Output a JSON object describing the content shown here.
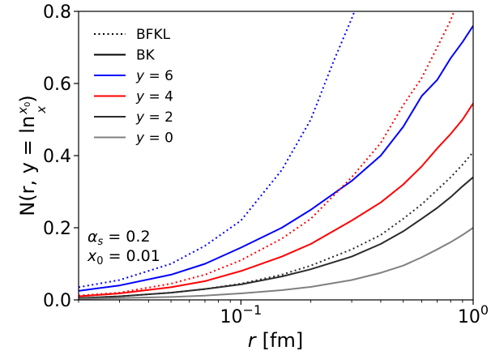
{
  "chart_data": {
    "type": "line",
    "xscale": "log",
    "xlim": [
      0.02,
      1.0
    ],
    "ylim": [
      0.0,
      0.8
    ],
    "xlabel": {
      "main": "r",
      "unit": "[fm]"
    },
    "ylabel": {
      "lhs": "N(r, y = ln",
      "num": "x",
      "num_sub": "0",
      "den": "x",
      "rhs": ")"
    },
    "xticks": [
      {
        "value": 0.1,
        "base": "10",
        "exp": "−1"
      },
      {
        "value": 1.0,
        "base": "10",
        "exp": "0"
      }
    ],
    "yticks": [
      {
        "value": 0.0,
        "label": "0.0"
      },
      {
        "value": 0.2,
        "label": "0.2"
      },
      {
        "value": 0.4,
        "label": "0.4"
      },
      {
        "value": 0.6,
        "label": "0.6"
      },
      {
        "value": 0.8,
        "label": "0.8"
      }
    ],
    "legend": {
      "position": "top-left",
      "entries": [
        {
          "label": "BFKL",
          "style": "dotted",
          "color": "#000000"
        },
        {
          "label": "BK",
          "style": "solid",
          "color": "#000000"
        },
        {
          "label_var": "y",
          "label_rest": " = 6",
          "style": "solid",
          "color": "#0000ff"
        },
        {
          "label_var": "y",
          "label_rest": " = 4",
          "style": "solid",
          "color": "#ff0000"
        },
        {
          "label_var": "y",
          "label_rest": " = 2",
          "style": "solid",
          "color": "#2b2b2b"
        },
        {
          "label_var": "y",
          "label_rest": " = 0",
          "style": "solid",
          "color": "#808080"
        }
      ]
    },
    "annotations": [
      {
        "var": "α",
        "sub": "s",
        "rest": " = 0.2"
      },
      {
        "var": "x",
        "sub": "0",
        "rest": " = 0.01"
      }
    ],
    "series": [
      {
        "y": 6,
        "model": "BFKL",
        "style": "dotted",
        "color": "#0000ff",
        "x": [
          0.02,
          0.03,
          0.05,
          0.07,
          0.1,
          0.15,
          0.2,
          0.25,
          0.3,
          0.33
        ],
        "values": [
          0.035,
          0.055,
          0.1,
          0.15,
          0.22,
          0.36,
          0.5,
          0.66,
          0.78,
          0.85
        ]
      },
      {
        "y": 6,
        "model": "BK",
        "style": "solid",
        "color": "#0000ff",
        "x": [
          0.02,
          0.03,
          0.05,
          0.07,
          0.1,
          0.15,
          0.2,
          0.3,
          0.4,
          0.5,
          0.6,
          0.7,
          0.8,
          0.9,
          1.0
        ],
        "values": [
          0.025,
          0.04,
          0.07,
          0.1,
          0.145,
          0.2,
          0.25,
          0.33,
          0.4,
          0.48,
          0.565,
          0.61,
          0.67,
          0.715,
          0.76
        ]
      },
      {
        "y": 4,
        "model": "BFKL",
        "style": "dotted",
        "color": "#ff0000",
        "x": [
          0.02,
          0.03,
          0.05,
          0.07,
          0.1,
          0.15,
          0.2,
          0.3,
          0.4,
          0.5,
          0.6,
          0.7,
          0.8,
          0.85
        ],
        "values": [
          0.012,
          0.02,
          0.045,
          0.07,
          0.11,
          0.17,
          0.225,
          0.34,
          0.435,
          0.54,
          0.615,
          0.7,
          0.775,
          0.82
        ]
      },
      {
        "y": 4,
        "model": "BK",
        "style": "solid",
        "color": "#ff0000",
        "x": [
          0.02,
          0.03,
          0.05,
          0.07,
          0.1,
          0.15,
          0.2,
          0.3,
          0.4,
          0.5,
          0.6,
          0.7,
          0.8,
          0.9,
          1.0
        ],
        "values": [
          0.01,
          0.018,
          0.035,
          0.052,
          0.08,
          0.12,
          0.155,
          0.22,
          0.27,
          0.32,
          0.37,
          0.42,
          0.46,
          0.5,
          0.545
        ]
      },
      {
        "y": 2,
        "model": "BFKL",
        "style": "dotted",
        "color": "#2b2b2b",
        "x": [
          0.02,
          0.03,
          0.05,
          0.07,
          0.1,
          0.15,
          0.2,
          0.3,
          0.4,
          0.5,
          0.6,
          0.7,
          0.8,
          0.9,
          1.0
        ],
        "values": [
          0.005,
          0.01,
          0.02,
          0.03,
          0.045,
          0.07,
          0.095,
          0.14,
          0.18,
          0.225,
          0.265,
          0.305,
          0.34,
          0.375,
          0.41
        ]
      },
      {
        "y": 2,
        "model": "BK",
        "style": "solid",
        "color": "#2b2b2b",
        "x": [
          0.02,
          0.03,
          0.05,
          0.07,
          0.1,
          0.15,
          0.2,
          0.3,
          0.4,
          0.5,
          0.6,
          0.7,
          0.8,
          0.9,
          1.0
        ],
        "values": [
          0.005,
          0.01,
          0.02,
          0.03,
          0.043,
          0.065,
          0.085,
          0.12,
          0.155,
          0.19,
          0.225,
          0.255,
          0.285,
          0.315,
          0.34
        ]
      },
      {
        "y": 0,
        "model": "BK",
        "style": "solid",
        "color": "#808080",
        "x": [
          0.02,
          0.03,
          0.05,
          0.07,
          0.1,
          0.15,
          0.2,
          0.3,
          0.4,
          0.5,
          0.6,
          0.7,
          0.8,
          0.9,
          1.0
        ],
        "values": [
          0.003,
          0.005,
          0.008,
          0.012,
          0.018,
          0.027,
          0.036,
          0.055,
          0.075,
          0.095,
          0.118,
          0.14,
          0.16,
          0.18,
          0.2
        ]
      }
    ]
  }
}
